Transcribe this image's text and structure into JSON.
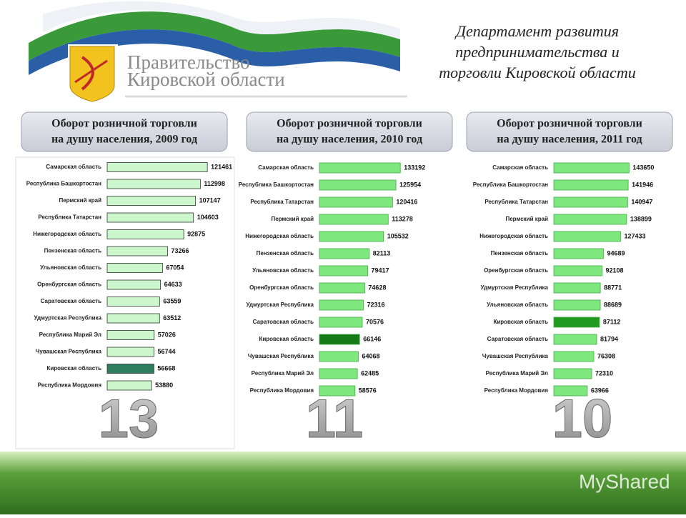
{
  "header": {
    "org": [
      "Правительство",
      "Кировской области"
    ],
    "department": [
      "Департамент развития",
      "предпринимательства и",
      "торговли Кировской области"
    ],
    "watermark": "MyShared"
  },
  "chart_data": [
    {
      "type": "bar",
      "orientation": "horizontal",
      "title": [
        "Оборот розничной торговли",
        "на душу населения, 2009 год"
      ],
      "categories": [
        "Самарская область",
        "Республика Башкортостан",
        "Пермский край",
        "Республика Татарстан",
        "Нижегородская область",
        "Пензенская область",
        "Ульяновская область",
        "Оренбургская область",
        "Саратовская область",
        "Удмуртская Республика",
        "Республика  Марий Эл",
        "Чувашская Республика",
        "Кировская область",
        "Республика Мордовия"
      ],
      "values": [
        121461,
        112998,
        107147,
        104603,
        92875,
        73266,
        67054,
        64633,
        63559,
        63512,
        57026,
        56744,
        56668,
        53880
      ],
      "color": "#ccf7cc",
      "highlight_index": 12,
      "highlight_color": "#2e7d5e",
      "xlim": [
        0,
        130000
      ],
      "rank": "13"
    },
    {
      "type": "bar",
      "orientation": "horizontal",
      "title": [
        "Оборот розничной торговли",
        "на душу населения, 2010 год"
      ],
      "categories": [
        "Самарская область",
        "Республика Башкортостан",
        "Республика Татарстан",
        "Пермский край",
        "Нижегородская область",
        "Пензенская область",
        "Ульяновская область",
        "Оренбургская область",
        "Удмуртская Республика",
        "Саратовская область",
        "Кировская область",
        "Чувашская Республика",
        "Республика  Марий Эл",
        "Республика Мордовия"
      ],
      "values": [
        133192,
        125954,
        120416,
        113278,
        105532,
        82113,
        79417,
        74628,
        72316,
        70576,
        66146,
        64068,
        62485,
        58576
      ],
      "color": "#7ee87e",
      "highlight_index": 10,
      "highlight_color": "#167a16",
      "xlim": [
        0,
        140000
      ],
      "rank": "11"
    },
    {
      "type": "bar",
      "orientation": "horizontal",
      "title": [
        "Оборот розничной торговли",
        "на душу населения, 2011 год"
      ],
      "categories": [
        "Самарская область",
        "Республика Башкортостан",
        "Республика Татарстан",
        "Пермский край",
        "Нижегородская область",
        "Пензенская область",
        "Оренбургская область",
        "Удмуртская Республика",
        "Ульяновская область",
        "Кировская область",
        "Саратовская область",
        "Чувашская Республика",
        "Республика  Марий Эл",
        "Республика Мордовия"
      ],
      "values": [
        143650,
        141946,
        140947,
        138899,
        127433,
        94689,
        92108,
        88771,
        88689,
        87112,
        81794,
        76308,
        72310,
        63966
      ],
      "color": "#7ee87e",
      "highlight_index": 9,
      "highlight_color": "#1f9a1f",
      "xlim": [
        0,
        150000
      ],
      "rank": "10"
    }
  ]
}
